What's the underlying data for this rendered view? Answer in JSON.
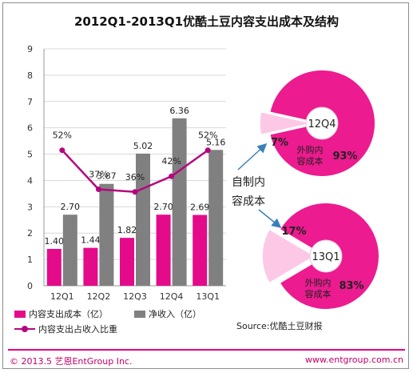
{
  "title": "2012Q1-2013Q1优酷土豆内容支出成本及结构",
  "chart_data": [
    {
      "type": "bar",
      "categories": [
        "12Q1",
        "12Q2",
        "12Q3",
        "12Q4",
        "13Q1"
      ],
      "series": [
        {
          "name": "内容支出成本（亿）",
          "values": [
            1.4,
            1.44,
            1.82,
            2.7,
            2.69
          ],
          "labels": [
            "1.40",
            "1.44",
            "1.82",
            "2.70",
            "2.69"
          ],
          "color": "#e30b8a"
        },
        {
          "name": "净收入（亿）",
          "values": [
            2.7,
            3.87,
            5.02,
            6.36,
            5.16
          ],
          "labels": [
            "2.70",
            "3.87",
            "5.02",
            "6.36",
            "5.16"
          ],
          "color": "#808080"
        },
        {
          "name": "内容支出占收入比重",
          "type": "line",
          "values": [
            52,
            37,
            36,
            42,
            52
          ],
          "labels": [
            "52%",
            "37%",
            "36%",
            "42%",
            "52%"
          ],
          "color": "#b5067f"
        }
      ],
      "ylim": [
        0,
        9
      ],
      "yticks": [
        "0",
        "1",
        "2",
        "3",
        "4",
        "5",
        "6",
        "7",
        "8",
        "9"
      ],
      "grid": true
    },
    {
      "type": "pie",
      "center_label": "12Q4",
      "slices": [
        {
          "name": "自制内容成本",
          "value": 7,
          "label": "7%",
          "color": "#fcc8e6"
        },
        {
          "name": "外购内容成本",
          "value": 93,
          "label": "93%",
          "color": "#ec1b8f"
        }
      ]
    },
    {
      "type": "pie",
      "center_label": "13Q1",
      "slices": [
        {
          "name": "自制内容成本",
          "value": 17,
          "label": "17%",
          "color": "#fcc8e6"
        },
        {
          "name": "外购内容成本",
          "value": 83,
          "label": "83%",
          "color": "#ec1b8f"
        }
      ]
    }
  ],
  "pie_labels": {
    "self_made_a": "自制内",
    "self_made_b": "容成本",
    "purchased_a": "外购内",
    "purchased_b": "容成本"
  },
  "legend": {
    "content_cost": "内容支出成本（亿）",
    "net_revenue": "净收入（亿）",
    "ratio": "内容支出占收入比重"
  },
  "source": "Source:优酷土豆财报",
  "footer": {
    "copyright": "© 2013.5  艺恩EntGroup Inc.",
    "website": "www.entgroup.com.cn"
  },
  "colors": {
    "brand": "#e6007e",
    "bar_cost": "#e30b8a",
    "bar_revenue": "#808080",
    "line_ratio": "#b5067f",
    "slice_self": "#fcc8e6",
    "slice_purchased": "#ec1b8f",
    "arrow": "#3b7fb8"
  }
}
